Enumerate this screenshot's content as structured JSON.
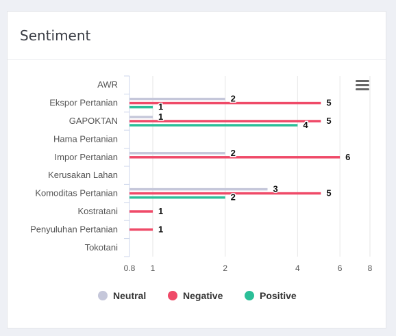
{
  "card": {
    "title": "Sentiment"
  },
  "chart_data": {
    "type": "bar",
    "orientation": "horizontal",
    "x_scale": "log",
    "xlim": [
      0.8,
      8
    ],
    "x_ticks": [
      "0.8",
      "1",
      "2",
      "4",
      "6",
      "8"
    ],
    "grid": true,
    "legend_position": "bottom",
    "categories": [
      "AWR",
      "Ekspor Pertanian",
      "GAPOKTAN",
      "Hama Pertanian",
      "Impor Pertanian",
      "Kerusakan Lahan",
      "Komoditas Pertanian",
      "Kostratani",
      "Penyuluhan Pertanian",
      "Tokotani"
    ],
    "series": [
      {
        "name": "Neutral",
        "color": "#c5c7da",
        "values": [
          null,
          2,
          1,
          null,
          2,
          null,
          3,
          null,
          null,
          null
        ]
      },
      {
        "name": "Negative",
        "color": "#ef4a68",
        "values": [
          null,
          5,
          5,
          null,
          6,
          null,
          5,
          1,
          1,
          null
        ]
      },
      {
        "name": "Positive",
        "color": "#2bbf98",
        "values": [
          null,
          1,
          4,
          null,
          null,
          null,
          2,
          null,
          null,
          null
        ]
      }
    ]
  }
}
